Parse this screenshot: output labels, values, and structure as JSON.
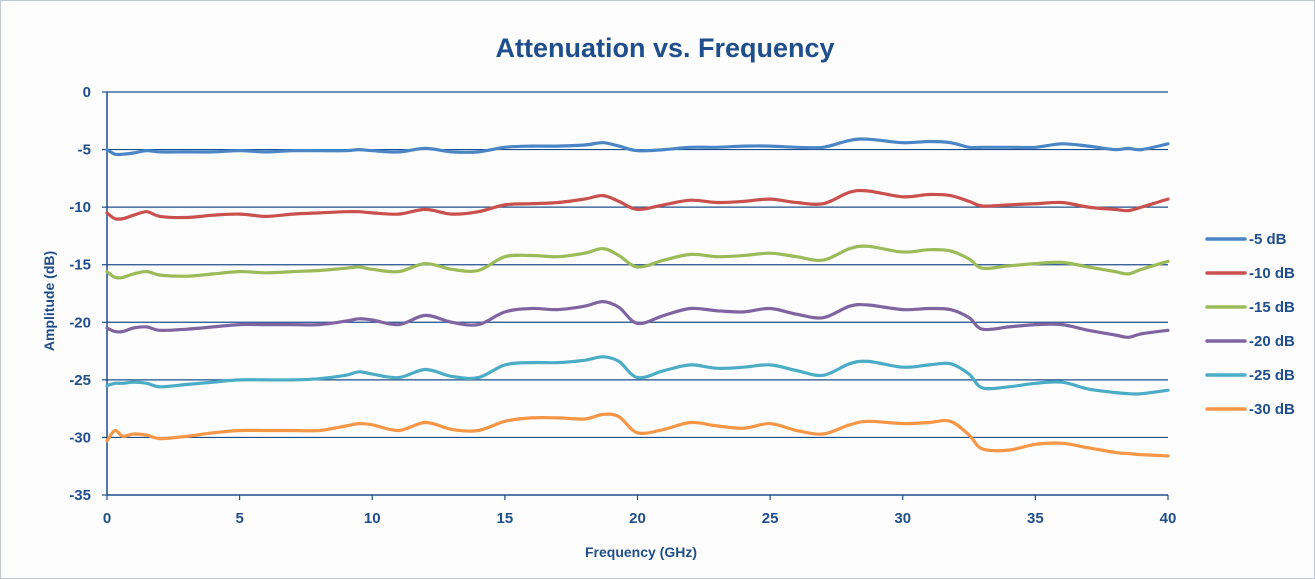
{
  "chart_data": {
    "type": "line",
    "title": "Attenuation vs. Frequency",
    "xlabel": "Frequency (GHz)",
    "ylabel": "Amplitude (dB)",
    "xlim": [
      0,
      40
    ],
    "ylim": [
      -35,
      0
    ],
    "xticks": [
      "0",
      "5",
      "10",
      "15",
      "20",
      "25",
      "30",
      "35",
      "40"
    ],
    "yticks": [
      "0",
      "-5",
      "-10",
      "-15",
      "-20",
      "-25",
      "-30",
      "-35"
    ],
    "grid": "horizontal",
    "legend_position": "right",
    "colors": {
      "axis": "#1f4e8c",
      "gridline": "#1f4e8c",
      "title": "#1f4e8c"
    },
    "x": [
      0,
      0.3,
      0.6,
      1,
      1.5,
      2,
      3,
      4,
      5,
      6,
      7,
      8,
      9,
      9.5,
      10,
      11,
      12,
      13,
      14,
      15,
      16,
      17,
      18,
      18.7,
      19.3,
      20,
      21,
      22,
      23,
      24,
      25,
      26,
      27,
      28,
      28.7,
      30,
      31,
      31.8,
      32.5,
      33,
      34,
      35,
      36,
      37,
      38,
      38.5,
      39,
      40
    ],
    "series": [
      {
        "name": "-5 dB",
        "color": "#4a86c6",
        "values": [
          -5.0,
          -5.4,
          -5.4,
          -5.3,
          -5.1,
          -5.2,
          -5.2,
          -5.2,
          -5.1,
          -5.2,
          -5.1,
          -5.1,
          -5.1,
          -5.0,
          -5.1,
          -5.2,
          -4.9,
          -5.2,
          -5.2,
          -4.8,
          -4.7,
          -4.7,
          -4.6,
          -4.4,
          -4.7,
          -5.1,
          -5.0,
          -4.8,
          -4.8,
          -4.7,
          -4.7,
          -4.8,
          -4.8,
          -4.2,
          -4.1,
          -4.4,
          -4.3,
          -4.4,
          -4.8,
          -4.8,
          -4.8,
          -4.8,
          -4.5,
          -4.7,
          -5.0,
          -4.9,
          -5.0,
          -4.5
        ]
      },
      {
        "name": "-10 dB",
        "color": "#c9504d",
        "values": [
          -10.5,
          -11.0,
          -11.0,
          -10.7,
          -10.4,
          -10.8,
          -10.9,
          -10.7,
          -10.6,
          -10.8,
          -10.6,
          -10.5,
          -10.4,
          -10.4,
          -10.5,
          -10.6,
          -10.2,
          -10.6,
          -10.4,
          -9.8,
          -9.7,
          -9.6,
          -9.3,
          -9.0,
          -9.5,
          -10.2,
          -9.8,
          -9.4,
          -9.6,
          -9.5,
          -9.3,
          -9.6,
          -9.7,
          -8.7,
          -8.6,
          -9.1,
          -8.9,
          -9.0,
          -9.5,
          -9.9,
          -9.8,
          -9.7,
          -9.6,
          -10.0,
          -10.2,
          -10.3,
          -10.0,
          -9.3
        ]
      },
      {
        "name": "-15 dB",
        "color": "#9bbb59",
        "values": [
          -15.6,
          -16.1,
          -16.1,
          -15.8,
          -15.6,
          -15.9,
          -16.0,
          -15.8,
          -15.6,
          -15.7,
          -15.6,
          -15.5,
          -15.3,
          -15.2,
          -15.4,
          -15.6,
          -14.9,
          -15.4,
          -15.5,
          -14.3,
          -14.2,
          -14.3,
          -14.0,
          -13.6,
          -14.2,
          -15.2,
          -14.6,
          -14.1,
          -14.3,
          -14.2,
          -14.0,
          -14.3,
          -14.6,
          -13.6,
          -13.4,
          -13.9,
          -13.7,
          -13.8,
          -14.5,
          -15.3,
          -15.1,
          -14.9,
          -14.8,
          -15.2,
          -15.6,
          -15.8,
          -15.4,
          -14.7
        ]
      },
      {
        "name": "-20 dB",
        "color": "#8064a2",
        "values": [
          -20.5,
          -20.8,
          -20.8,
          -20.5,
          -20.4,
          -20.7,
          -20.6,
          -20.4,
          -20.2,
          -20.2,
          -20.2,
          -20.2,
          -19.9,
          -19.7,
          -19.8,
          -20.2,
          -19.4,
          -20.0,
          -20.2,
          -19.1,
          -18.8,
          -18.9,
          -18.6,
          -18.2,
          -18.7,
          -20.1,
          -19.4,
          -18.8,
          -19.0,
          -19.1,
          -18.8,
          -19.3,
          -19.6,
          -18.6,
          -18.5,
          -18.9,
          -18.8,
          -18.9,
          -19.6,
          -20.6,
          -20.4,
          -20.2,
          -20.2,
          -20.7,
          -21.1,
          -21.3,
          -21.0,
          -20.7
        ]
      },
      {
        "name": "-25 dB",
        "color": "#4bacc6",
        "values": [
          -25.5,
          -25.3,
          -25.3,
          -25.2,
          -25.3,
          -25.6,
          -25.4,
          -25.2,
          -25.0,
          -25.0,
          -25.0,
          -24.9,
          -24.6,
          -24.3,
          -24.5,
          -24.8,
          -24.1,
          -24.7,
          -24.8,
          -23.7,
          -23.5,
          -23.5,
          -23.3,
          -23.0,
          -23.4,
          -24.8,
          -24.2,
          -23.7,
          -24.0,
          -23.9,
          -23.7,
          -24.2,
          -24.6,
          -23.6,
          -23.4,
          -23.9,
          -23.7,
          -23.6,
          -24.5,
          -25.7,
          -25.6,
          -25.3,
          -25.2,
          -25.8,
          -26.1,
          -26.2,
          -26.2,
          -25.9
        ]
      },
      {
        "name": "-30 dB",
        "color": "#f79646",
        "values": [
          -30.3,
          -29.4,
          -29.9,
          -29.7,
          -29.8,
          -30.1,
          -29.9,
          -29.6,
          -29.4,
          -29.4,
          -29.4,
          -29.4,
          -29.0,
          -28.8,
          -28.9,
          -29.4,
          -28.7,
          -29.3,
          -29.4,
          -28.6,
          -28.3,
          -28.3,
          -28.4,
          -28.0,
          -28.2,
          -29.6,
          -29.3,
          -28.7,
          -29.0,
          -29.2,
          -28.8,
          -29.4,
          -29.7,
          -28.9,
          -28.6,
          -28.8,
          -28.7,
          -28.6,
          -29.8,
          -31.0,
          -31.1,
          -30.6,
          -30.5,
          -30.9,
          -31.3,
          -31.4,
          -31.5,
          -31.6
        ]
      }
    ]
  }
}
